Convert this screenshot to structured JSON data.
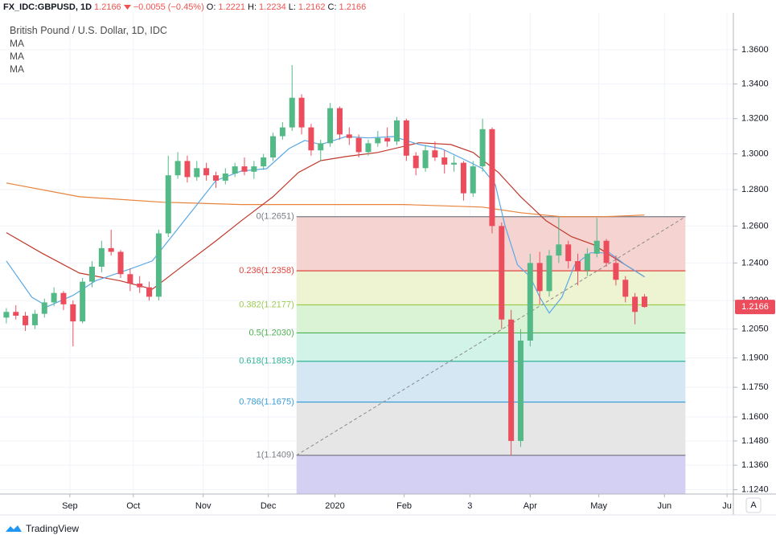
{
  "header": {
    "symbol": "FX_IDC:GBPUSD, 1D",
    "last": "1.2166",
    "change": "−0.0055 (−0.45%)",
    "o_label": "O:",
    "o": "1.2221",
    "h_label": "H:",
    "h": "1.2234",
    "l_label": "L:",
    "l": "1.2162",
    "c_label": "C:",
    "c": "1.2166"
  },
  "legend": {
    "title": "British Pound / U.S. Dollar, 1D, IDC"
  },
  "price_label": "1.2166",
  "footer": {
    "brand": "TradingView",
    "scale_button": "A"
  },
  "chart_data": {
    "type": "candlestick",
    "log": true,
    "grid": true,
    "xlim": [
      -2,
      229
    ],
    "ylim": [
      1.1219,
      1.3819
    ],
    "xticks": [
      {
        "value": 20,
        "label": "Sep"
      },
      {
        "value": 40,
        "label": "Oct"
      },
      {
        "value": 62,
        "label": "Nov"
      },
      {
        "value": 82.5,
        "label": "Dec"
      },
      {
        "value": 103.5,
        "label": "2020"
      },
      {
        "value": 125.3,
        "label": "Feb"
      },
      {
        "value": 146,
        "label": "3"
      },
      {
        "value": 165,
        "label": "Apr"
      },
      {
        "value": 186.6,
        "label": "May"
      },
      {
        "value": 207.3,
        "label": "Jun"
      },
      {
        "value": 227,
        "label": "Ju"
      }
    ],
    "yticks": [
      {
        "value": 1.36,
        "label": "1.3600"
      },
      {
        "value": 1.34,
        "label": "1.3400"
      },
      {
        "value": 1.32,
        "label": "1.3200"
      },
      {
        "value": 1.3,
        "label": "1.3000"
      },
      {
        "value": 1.28,
        "label": "1.2800"
      },
      {
        "value": 1.26,
        "label": "1.2600"
      },
      {
        "value": 1.24,
        "label": "1.2400"
      },
      {
        "value": 1.22,
        "label": "1.2200"
      },
      {
        "value": 1.205,
        "label": "1.2050"
      },
      {
        "value": 1.19,
        "label": "1.1900"
      },
      {
        "value": 1.175,
        "label": "1.1750"
      },
      {
        "value": 1.16,
        "label": "1.1600"
      },
      {
        "value": 1.148,
        "label": "1.1480"
      },
      {
        "value": 1.136,
        "label": "1.1360"
      },
      {
        "value": 1.124,
        "label": "1.1240"
      }
    ],
    "candles": {
      "up_color": "#53b987",
      "down_color": "#eb4d5c",
      "x": [
        0,
        3,
        6,
        9,
        12,
        15,
        18,
        21,
        24,
        27,
        30,
        33,
        36,
        39,
        42,
        45,
        48,
        51,
        54,
        57,
        60,
        63,
        66,
        69,
        72,
        75,
        78,
        81,
        84,
        87,
        90,
        93,
        96,
        99,
        102,
        105,
        108,
        111,
        114,
        117,
        120,
        123,
        126,
        129,
        132,
        135,
        138,
        141,
        144,
        147,
        150,
        153,
        156,
        159,
        162,
        165,
        168,
        171,
        174,
        177,
        180,
        183,
        186,
        189,
        192,
        195,
        198,
        201
      ],
      "open": [
        1.211,
        1.214,
        1.212,
        1.207,
        1.213,
        1.219,
        1.224,
        1.218,
        1.209,
        1.23,
        1.238,
        1.248,
        1.246,
        1.234,
        1.229,
        1.227,
        1.222,
        1.256,
        1.288,
        1.296,
        1.287,
        1.292,
        1.288,
        1.285,
        1.289,
        1.293,
        1.29,
        1.293,
        1.298,
        1.31,
        1.315,
        1.332,
        1.315,
        1.302,
        1.306,
        1.326,
        1.311,
        1.309,
        1.301,
        1.306,
        1.309,
        1.307,
        1.319,
        1.299,
        1.292,
        1.302,
        1.298,
        1.294,
        1.295,
        1.278,
        1.293,
        1.314,
        1.26,
        1.21,
        1.148,
        1.199,
        1.24,
        1.225,
        1.244,
        1.25,
        1.241,
        1.236,
        1.245,
        1.252,
        1.24,
        1.231,
        1.222,
        1.2221
      ],
      "high": [
        1.216,
        1.2175,
        1.214,
        1.215,
        1.221,
        1.227,
        1.225,
        1.22,
        1.232,
        1.241,
        1.252,
        1.258,
        1.247,
        1.237,
        1.233,
        1.23,
        1.258,
        1.299,
        1.301,
        1.299,
        1.296,
        1.295,
        1.29,
        1.292,
        1.295,
        1.298,
        1.296,
        1.3,
        1.312,
        1.318,
        1.351,
        1.334,
        1.317,
        1.308,
        1.329,
        1.327,
        1.315,
        1.311,
        1.308,
        1.313,
        1.315,
        1.321,
        1.32,
        1.301,
        1.305,
        1.307,
        1.302,
        1.299,
        1.296,
        1.296,
        1.32,
        1.315,
        1.262,
        1.215,
        1.205,
        1.245,
        1.246,
        1.247,
        1.265,
        1.252,
        1.245,
        1.248,
        1.2645,
        1.253,
        1.244,
        1.233,
        1.224,
        1.2234
      ],
      "low": [
        1.208,
        1.21,
        1.204,
        1.205,
        1.211,
        1.217,
        1.215,
        1.196,
        1.208,
        1.227,
        1.235,
        1.244,
        1.232,
        1.225,
        1.224,
        1.22,
        1.22,
        1.254,
        1.286,
        1.284,
        1.285,
        1.285,
        1.281,
        1.283,
        1.287,
        1.288,
        1.286,
        1.291,
        1.296,
        1.308,
        1.313,
        1.311,
        1.299,
        1.296,
        1.304,
        1.308,
        1.305,
        1.298,
        1.299,
        1.304,
        1.304,
        1.305,
        1.296,
        1.288,
        1.29,
        1.296,
        1.289,
        1.29,
        1.274,
        1.276,
        1.29,
        1.256,
        1.205,
        1.1409,
        1.145,
        1.196,
        1.218,
        1.222,
        1.24,
        1.237,
        1.228,
        1.233,
        1.243,
        1.238,
        1.228,
        1.219,
        1.2075,
        1.2162
      ],
      "close": [
        1.214,
        1.212,
        1.207,
        1.213,
        1.219,
        1.224,
        1.218,
        1.209,
        1.23,
        1.238,
        1.248,
        1.246,
        1.234,
        1.229,
        1.227,
        1.222,
        1.256,
        1.288,
        1.296,
        1.287,
        1.292,
        1.288,
        1.285,
        1.289,
        1.293,
        1.29,
        1.293,
        1.298,
        1.31,
        1.315,
        1.332,
        1.315,
        1.302,
        1.306,
        1.326,
        1.311,
        1.309,
        1.301,
        1.306,
        1.309,
        1.307,
        1.319,
        1.299,
        1.292,
        1.302,
        1.298,
        1.294,
        1.295,
        1.278,
        1.293,
        1.314,
        1.26,
        1.21,
        1.148,
        1.199,
        1.24,
        1.225,
        1.244,
        1.25,
        1.241,
        1.236,
        1.245,
        1.252,
        1.24,
        1.231,
        1.222,
        1.214,
        1.2166
      ]
    },
    "series": [
      {
        "name": "MA",
        "color": "#5aa9e6",
        "x": [
          0,
          8,
          13,
          21,
          28,
          39,
          46,
          51,
          59,
          66,
          74,
          82,
          89,
          94,
          99,
          107,
          114,
          122,
          130,
          137,
          145,
          150,
          154,
          157,
          161,
          165,
          168,
          171,
          175,
          179,
          184,
          190,
          195,
          201
        ],
        "values": [
          1.2411,
          1.2218,
          1.2168,
          1.2227,
          1.2304,
          1.2368,
          1.2411,
          1.2519,
          1.2694,
          1.2851,
          1.2904,
          1.2917,
          1.303,
          1.3076,
          1.3053,
          1.3098,
          1.309,
          1.3098,
          1.3053,
          1.303,
          1.2962,
          1.2917,
          1.2829,
          1.2607,
          1.239,
          1.2326,
          1.2218,
          1.2134,
          1.2218,
          1.239,
          1.2455,
          1.2455,
          1.239,
          1.2326
        ]
      },
      {
        "name": "MA",
        "color": "#c0392b",
        "x": [
          0,
          11,
          23,
          36,
          46,
          56,
          66,
          74,
          84,
          92,
          99,
          107,
          117,
          130,
          140,
          147,
          155,
          162,
          170,
          178,
          185,
          193,
          201
        ],
        "values": [
          1.2564,
          1.2455,
          1.2346,
          1.2304,
          1.226,
          1.239,
          1.2519,
          1.2629,
          1.2761,
          1.2896,
          1.2962,
          1.2985,
          1.3008,
          1.3063,
          1.3053,
          1.3008,
          1.2896,
          1.2761,
          1.2629,
          1.2542,
          1.2498,
          1.2411,
          1.2326
        ]
      },
      {
        "name": "MA",
        "color": "#e8823a",
        "x": [
          0,
          23,
          49,
          74,
          99,
          125,
          150,
          162,
          175,
          188,
          201
        ],
        "values": [
          1.2837,
          1.2761,
          1.2731,
          1.2718,
          1.2718,
          1.2718,
          1.2704,
          1.2673,
          1.2651,
          1.2651,
          1.266
        ]
      }
    ],
    "fib": {
      "x_range": [
        91.4,
        213.9
      ],
      "trend_color": "#8a8a8a",
      "levels": [
        {
          "label": "0(1.2651)",
          "value": 1.2651,
          "color": "#787b86",
          "fill": "#f5d3d1"
        },
        {
          "label": "0.236(1.2358)",
          "value": 1.2358,
          "color": "#e0443e",
          "fill": "#eef4d2"
        },
        {
          "label": "0.382(1.2177)",
          "value": 1.2177,
          "color": "#9ccc50",
          "fill": "#dbf3d5"
        },
        {
          "label": "0.5(1.2030)",
          "value": 1.203,
          "color": "#4caf50",
          "fill": "#d2f3e8"
        },
        {
          "label": "0.618(1.1883)",
          "value": 1.1883,
          "color": "#2fb49a",
          "fill": "#d6e7f4"
        },
        {
          "label": "0.786(1.1675)",
          "value": 1.1675,
          "color": "#3a9dd8",
          "fill": "#e6e6e6"
        },
        {
          "label": "1(1.1409)",
          "value": 1.1409,
          "color": "#787b86",
          "fill": "#d4d0f3"
        }
      ]
    }
  }
}
